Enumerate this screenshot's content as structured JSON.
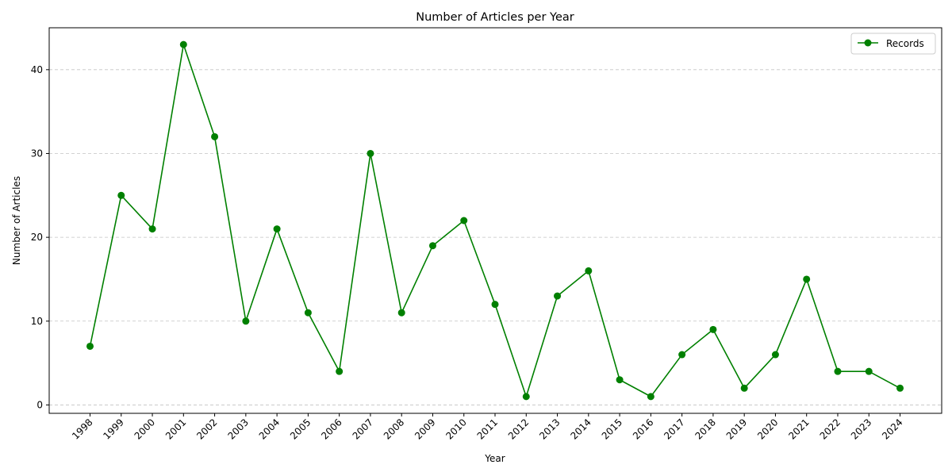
{
  "chart_data": {
    "type": "line",
    "title": "Number of Articles per Year",
    "xlabel": "Year",
    "ylabel": "Number of Articles",
    "categories": [
      "1998",
      "1999",
      "2000",
      "2001",
      "2002",
      "2003",
      "2004",
      "2005",
      "2006",
      "2007",
      "2008",
      "2009",
      "2010",
      "2011",
      "2012",
      "2013",
      "2014",
      "2015",
      "2016",
      "2017",
      "2018",
      "2019",
      "2020",
      "2021",
      "2022",
      "2023",
      "2024"
    ],
    "series": [
      {
        "name": "Records",
        "color": "#008000",
        "marker": "circle",
        "values": [
          7,
          25,
          21,
          43,
          32,
          10,
          21,
          11,
          4,
          30,
          11,
          19,
          22,
          12,
          1,
          13,
          16,
          3,
          1,
          6,
          9,
          2,
          6,
          15,
          4,
          4,
          2
        ]
      }
    ],
    "ylim": [
      -1,
      45
    ],
    "yticks": [
      0,
      10,
      20,
      30,
      40
    ],
    "grid": "y-dashed",
    "legend": "top-right"
  }
}
